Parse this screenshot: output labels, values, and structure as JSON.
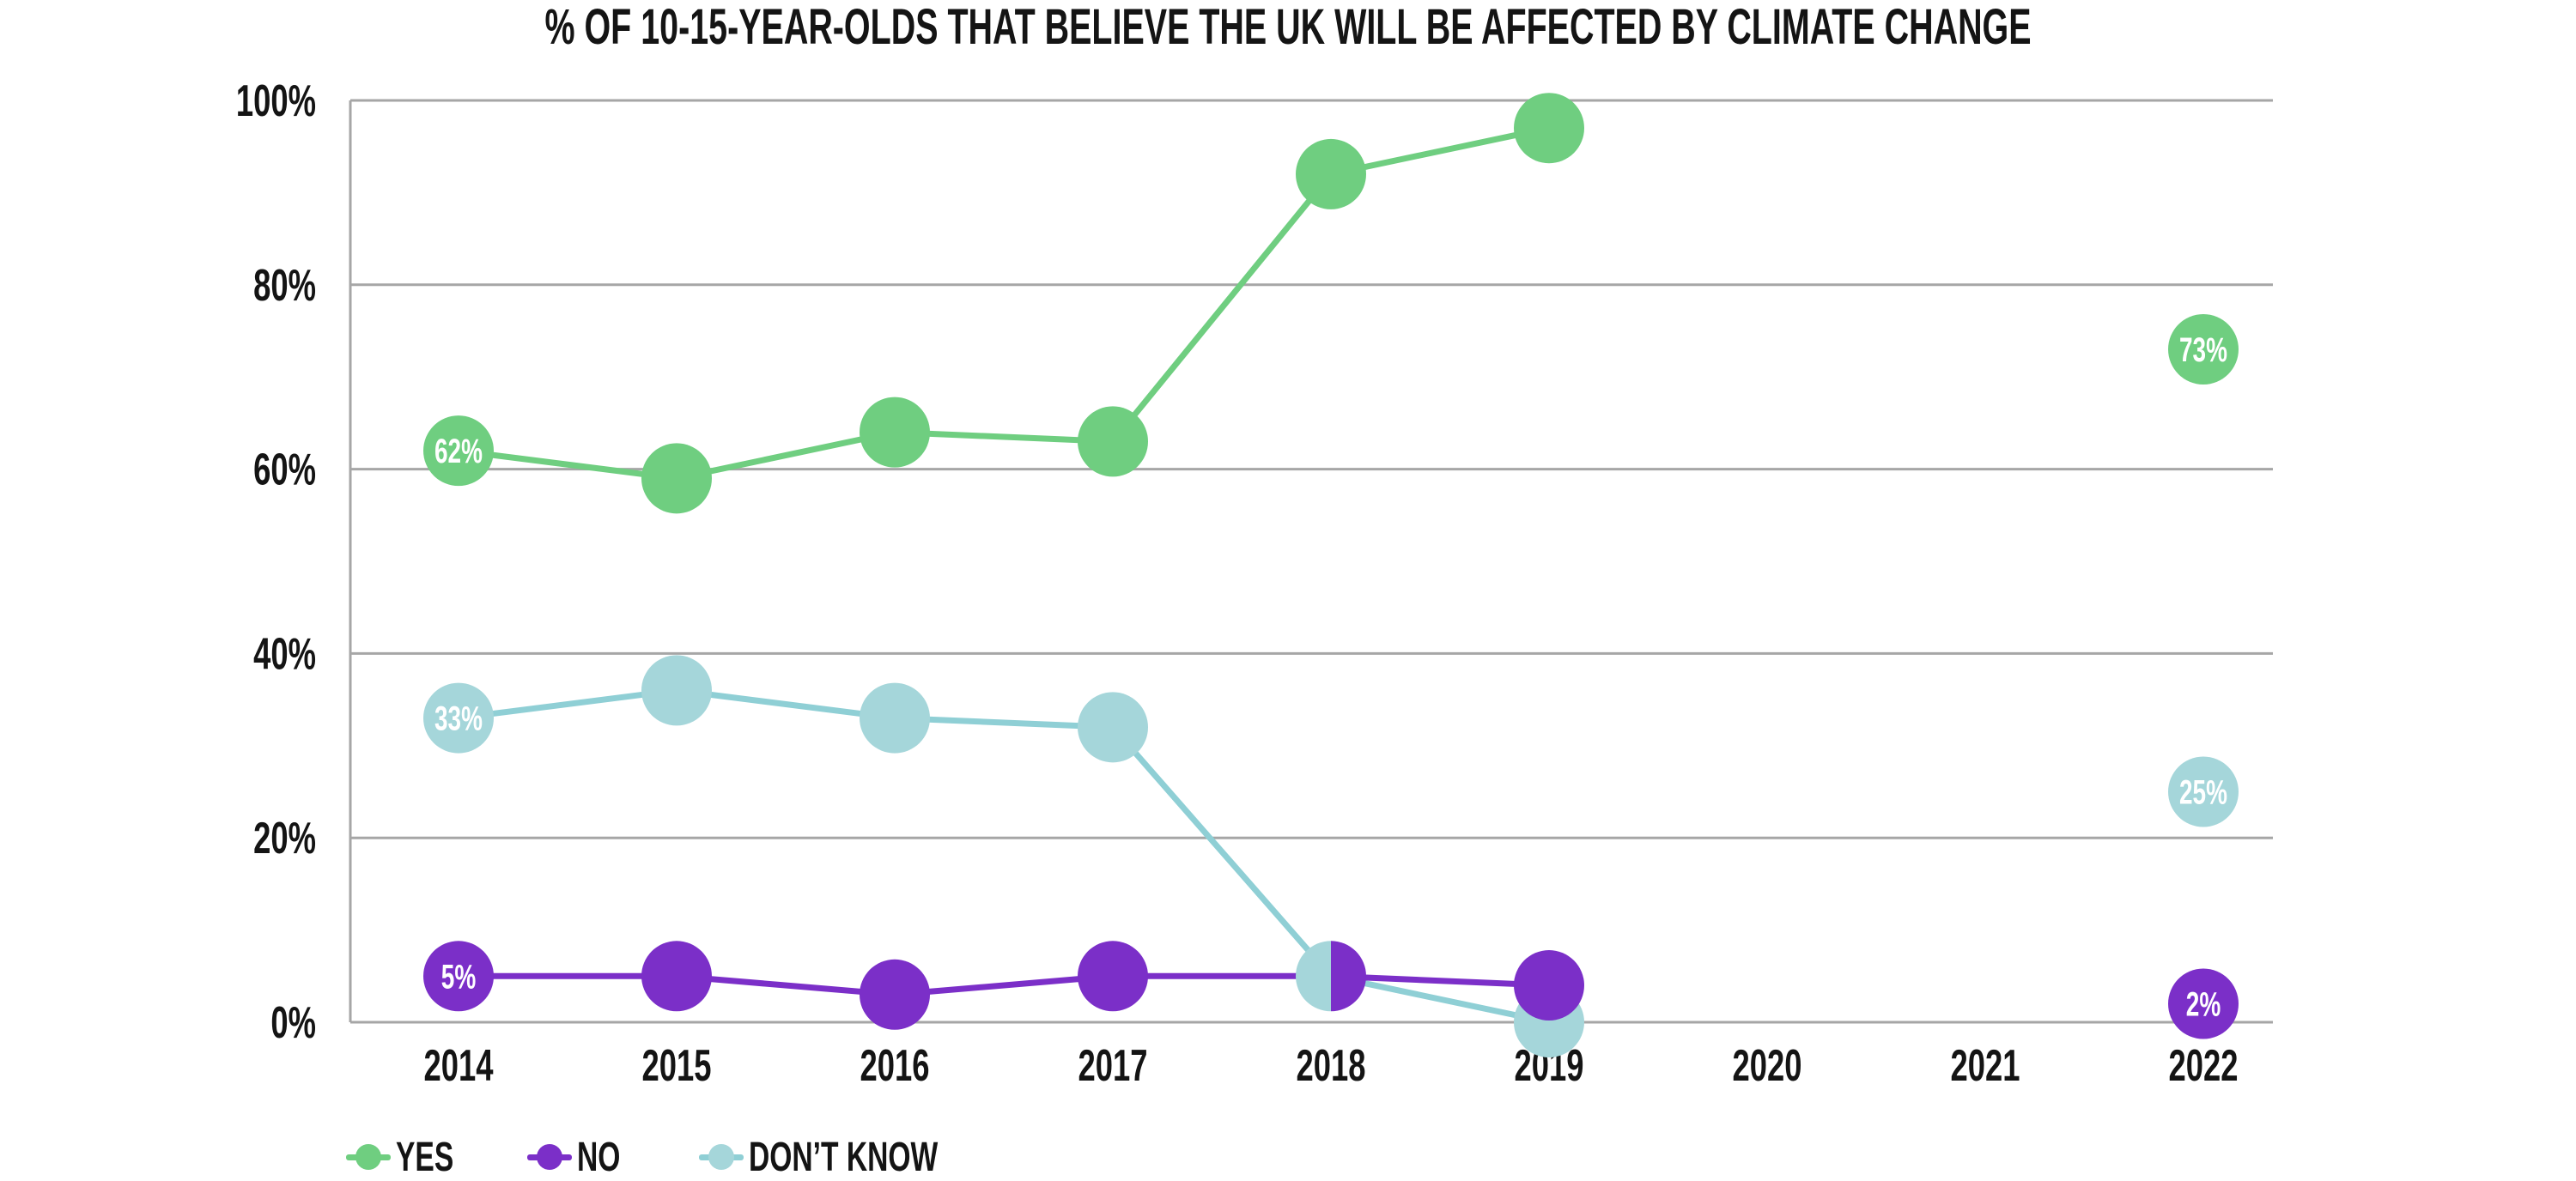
{
  "chart_data": {
    "type": "line",
    "title": "% OF 10-15-YEAR-OLDS THAT BELIEVE THE UK WILL BE AFFECTED BY CLIMATE CHANGE",
    "categories": [
      "2014",
      "2015",
      "2016",
      "2017",
      "2018",
      "2019",
      "2020",
      "2021",
      "2022"
    ],
    "y_axis": {
      "ticks": [
        "100%",
        "80%",
        "60%",
        "40%",
        "20%",
        "0%"
      ],
      "tick_values": [
        100,
        80,
        60,
        40,
        20,
        0
      ],
      "min": 0,
      "max": 100
    },
    "grid": true,
    "legend_position": "bottom",
    "series": [
      {
        "name": "YES",
        "color": "#6FCE80",
        "line_color": "#6FCE80",
        "values": [
          62,
          59,
          64,
          63,
          92,
          97,
          null,
          null,
          73
        ],
        "point_labels": {
          "2014": "62%",
          "2022": "73%"
        }
      },
      {
        "name": "NO",
        "color": "#7B2FC8",
        "line_color": "#7B2FC8",
        "values": [
          5,
          5,
          3,
          5,
          5,
          4,
          null,
          null,
          2
        ],
        "point_labels": {
          "2014": "5%",
          "2022": "2%"
        }
      },
      {
        "name": "DON’T KNOW",
        "color": "#A5D6DA",
        "line_color": "#8FCFD5",
        "values": [
          33,
          36,
          33,
          32,
          5,
          0,
          null,
          null,
          25
        ],
        "point_labels": {
          "2014": "33%",
          "2022": "25%"
        }
      }
    ],
    "split_marker": {
      "category": "2018",
      "left_series": "DON’T KNOW",
      "right_series": "NO"
    },
    "colors": {
      "grid": "#A6A6A6",
      "axis_text": "#141414",
      "point_label_text": "#FFFFFF",
      "background": "#FFFFFF"
    }
  }
}
